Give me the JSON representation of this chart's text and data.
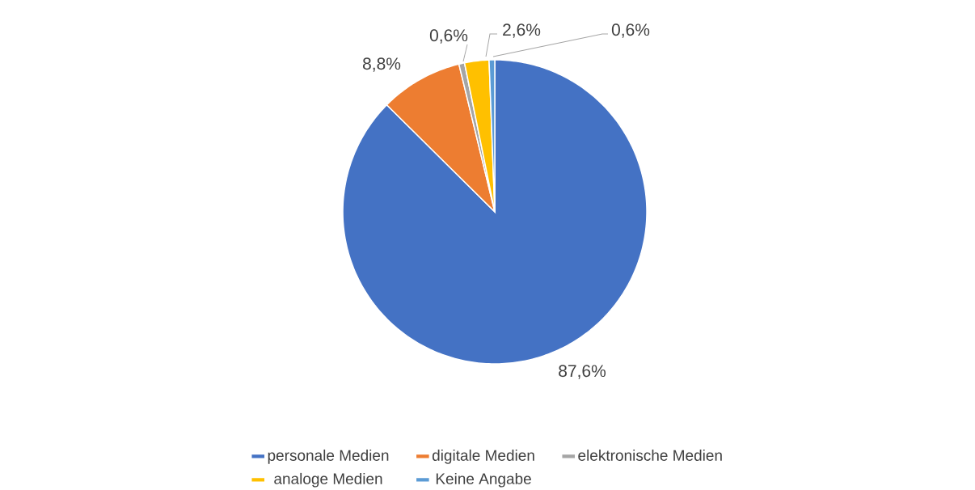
{
  "chart_data": {
    "type": "pie",
    "categories": [
      "personale Medien",
      "digitale Medien",
      "elektronische Medien",
      "analoge Medien",
      "Keine Angabe"
    ],
    "values": [
      87.6,
      8.8,
      0.6,
      2.6,
      0.6
    ],
    "colors": [
      "#4472c4",
      "#ed7d31",
      "#a5a5a5",
      "#ffc000",
      "#5b9bd5"
    ],
    "value_labels": [
      "87,6%",
      "8,8%",
      "0,6%",
      "2,6%",
      "0,6%"
    ],
    "legend": "bottom"
  }
}
